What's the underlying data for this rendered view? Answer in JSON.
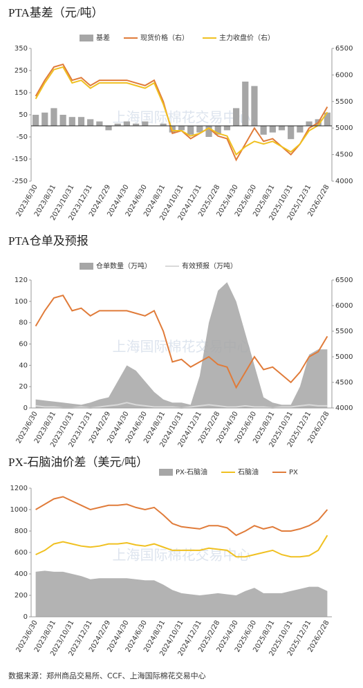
{
  "chart_data": [
    {
      "type": "combo",
      "title": "PTA基差（元/吨）",
      "watermark": "上海国际棉花交易中心",
      "categories": [
        "2023/6/30",
        null,
        "2023/8/31",
        null,
        "2023/10/31",
        null,
        "2023/12/31",
        null,
        "2024/2/29",
        null,
        "2024/4/30",
        null,
        "2024/6/30",
        null,
        "2024/8/31",
        null,
        "2024/10/31",
        null,
        "2024/12/31",
        null,
        "2025/2/28",
        null,
        "2025/4/30",
        null,
        "2025/6/30",
        null,
        "2025/8/31",
        null,
        "2025/10/31",
        null,
        "2025/12/31",
        null,
        "2026/2/28"
      ],
      "ylim": [
        -250,
        350
      ],
      "yticks": [
        -250,
        -150,
        -50,
        50,
        150,
        250,
        350
      ],
      "y2lim": [
        4000,
        6500
      ],
      "y2ticks": [
        4000,
        4500,
        5000,
        5500,
        6000,
        6500
      ],
      "series": [
        {
          "name": "基差",
          "type": "bar",
          "color": "#a6a6a6",
          "values": [
            50,
            60,
            80,
            50,
            40,
            40,
            30,
            20,
            -20,
            10,
            20,
            10,
            20,
            0,
            10,
            -30,
            -20,
            -40,
            -30,
            -50,
            -40,
            -20,
            80,
            200,
            180,
            -40,
            -30,
            -20,
            -60,
            -30,
            20,
            30,
            60
          ]
        },
        {
          "name": "现货价格（右）",
          "type": "line",
          "axis": "y2",
          "color": "#e07b39",
          "values": [
            5600,
            5900,
            6150,
            6200,
            5900,
            5950,
            5800,
            5900,
            5900,
            5900,
            5900,
            5850,
            5800,
            5900,
            5500,
            4900,
            4950,
            4800,
            4900,
            5000,
            4850,
            4800,
            4400,
            4700,
            5000,
            4750,
            4800,
            4650,
            4500,
            4700,
            5000,
            5100,
            5400
          ]
        },
        {
          "name": "主力收盘价（右）",
          "type": "line",
          "axis": "y2",
          "color": "#f0c020",
          "values": [
            5550,
            5850,
            6100,
            6150,
            5850,
            5900,
            5750,
            5850,
            5850,
            5850,
            5850,
            5800,
            5750,
            5850,
            5450,
            4950,
            4950,
            4850,
            4900,
            5000,
            4900,
            4850,
            4500,
            4650,
            4750,
            4700,
            4750,
            4650,
            4550,
            4700,
            4950,
            5050,
            5300
          ]
        }
      ]
    },
    {
      "type": "combo",
      "title": "PTA仓单及预报",
      "watermark": "上海国际棉花交易中心",
      "categories": [
        "2023/6/30",
        null,
        "2023/8/31",
        null,
        "2023/10/31",
        null,
        "2023/12/31",
        null,
        "2024/2/29",
        null,
        "2024/4/30",
        null,
        "2024/6/30",
        null,
        "2024/8/31",
        null,
        "2024/10/31",
        null,
        "2024/12/31",
        null,
        "2025/2/28",
        null,
        "2025/4/30",
        null,
        "2025/6/30",
        null,
        "2025/8/31",
        null,
        "2025/10/31",
        null,
        "2025/12/31",
        null,
        "2026/2/28"
      ],
      "ylim": [
        0,
        120
      ],
      "yticks": [
        0,
        20,
        40,
        60,
        80,
        100,
        120
      ],
      "y2lim": [
        4000,
        6500
      ],
      "y2ticks": [
        4000,
        4500,
        5000,
        5500,
        6000,
        6500
      ],
      "series": [
        {
          "name": "仓单数量（万吨）",
          "type": "area",
          "color": "#a6a6a6",
          "values": [
            8,
            7,
            6,
            5,
            4,
            3,
            5,
            8,
            10,
            25,
            40,
            35,
            25,
            15,
            8,
            5,
            5,
            3,
            30,
            80,
            110,
            118,
            100,
            70,
            40,
            10,
            5,
            3,
            3,
            20,
            50,
            55,
            55
          ]
        },
        {
          "name": "有效预报（万吨）",
          "type": "line",
          "color": "#d9d9d9",
          "values": [
            2,
            1,
            1,
            0,
            0,
            1,
            0,
            1,
            2,
            3,
            5,
            3,
            2,
            1,
            1,
            1,
            0,
            1,
            2,
            3,
            2,
            1,
            1,
            2,
            1,
            1,
            0,
            1,
            1,
            2,
            3,
            2,
            2
          ]
        },
        {
          "type": "line",
          "axis": "y2",
          "color": "#e07b39",
          "values": [
            5600,
            5900,
            6150,
            6200,
            5900,
            5950,
            5800,
            5900,
            5900,
            5900,
            5900,
            5850,
            5800,
            5900,
            5500,
            4900,
            4950,
            4800,
            4900,
            5000,
            4850,
            4800,
            4400,
            4700,
            5000,
            4750,
            4800,
            4650,
            4500,
            4700,
            5000,
            5100,
            5400
          ]
        }
      ]
    },
    {
      "type": "combo",
      "title": "PX-石脑油价差（美元/吨）",
      "watermark": "上海国际棉花交易中心",
      "categories": [
        "2023/6/30",
        null,
        "2023/8/31",
        null,
        "2023/10/31",
        null,
        "2023/12/31",
        null,
        "2024/2/29",
        null,
        "2024/4/30",
        null,
        "2024/6/30",
        null,
        "2024/8/31",
        null,
        "2024/10/31",
        null,
        "2024/12/31",
        null,
        "2025/2/28",
        null,
        "2025/4/30",
        null,
        "2025/6/30",
        null,
        "2025/8/31",
        null,
        "2025/10/31",
        null,
        "2025/12/31",
        null,
        "2026/2/28"
      ],
      "ylim": [
        0,
        1200
      ],
      "yticks": [
        0,
        200,
        400,
        600,
        800,
        1000,
        1200
      ],
      "series": [
        {
          "name": "PX-石脑油",
          "type": "area",
          "color": "#a6a6a6",
          "values": [
            420,
            430,
            420,
            420,
            400,
            380,
            350,
            360,
            360,
            360,
            360,
            350,
            340,
            340,
            300,
            250,
            220,
            210,
            200,
            210,
            220,
            210,
            200,
            240,
            270,
            220,
            220,
            220,
            240,
            260,
            280,
            280,
            240
          ]
        },
        {
          "name": "石脑油",
          "type": "line",
          "color": "#f0c020",
          "values": [
            580,
            620,
            680,
            700,
            680,
            660,
            650,
            660,
            680,
            680,
            690,
            670,
            660,
            680,
            650,
            620,
            620,
            620,
            620,
            640,
            630,
            620,
            560,
            560,
            580,
            600,
            620,
            580,
            560,
            560,
            570,
            620,
            760
          ]
        },
        {
          "name": "PX",
          "type": "line",
          "color": "#e07b39",
          "values": [
            1000,
            1050,
            1100,
            1120,
            1080,
            1040,
            1000,
            1020,
            1040,
            1040,
            1050,
            1020,
            1000,
            1020,
            950,
            870,
            840,
            830,
            820,
            850,
            850,
            830,
            760,
            800,
            850,
            820,
            840,
            800,
            800,
            820,
            850,
            900,
            1000
          ]
        }
      ]
    }
  ],
  "source": "数据来源：郑州商品交易所、CCF、上海国际棉花交易中心"
}
